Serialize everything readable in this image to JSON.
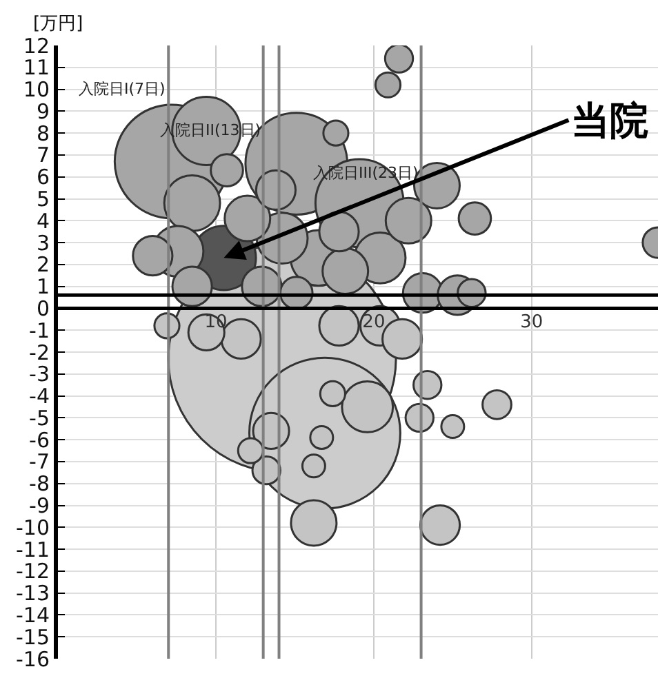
{
  "chart_data": {
    "type": "bubble",
    "ylabel": "[万円]",
    "x": [
      14.2,
      16.9,
      7.2,
      9.4,
      15.1,
      19.1,
      22.2,
      24.0,
      26.4,
      21.6,
      20.9,
      17.6,
      38.0,
      8.5,
      7.6,
      6.0,
      10.5,
      12.0,
      14.2,
      16.5,
      18.2,
      20.4,
      23.1,
      25.3,
      26.2,
      8.5,
      12.9,
      15.1,
      9.4,
      11.6,
      17.8,
      20.4,
      21.8,
      6.9,
      27.8,
      25.0,
      24.2,
      22.9,
      23.4,
      16.2,
      13.2,
      13.5,
      12.2,
      16.2,
      16.7,
      17.4,
      19.6,
      13.8,
      10.7,
      17.8
    ],
    "series": [
      {
        "values": [
          -2.3,
          -5.7,
          6.7,
          8.1,
          6.6,
          4.8,
          4.0,
          5.6,
          4.1,
          11.4,
          10.2,
          8.0,
          3.0,
          4.8,
          2.6,
          2.4,
          2.3,
          4.1,
          3.2,
          2.3,
          1.7,
          2.3,
          0.7,
          0.6,
          0.7,
          1.0,
          1.0,
          0.7,
          -1.1,
          -1.4,
          -0.8,
          -0.8,
          -1.4,
          -0.8,
          -4.4,
          -5.4,
          -9.9,
          -5.0,
          -3.5,
          -9.8,
          -7.4,
          -5.6,
          -6.5,
          -7.2,
          -5.9,
          -3.9,
          -4.5,
          5.4,
          6.3,
          3.5
        ],
        "sizes": [
          1,
          0.44,
          0.25,
          0.09,
          0.2,
          0.15,
          0.04,
          0.04,
          0.02,
          0.015,
          0.012,
          0.012,
          0.018,
          0.06,
          0.05,
          0.03,
          0.08,
          0.04,
          0.05,
          0.06,
          0.04,
          0.05,
          0.03,
          0.03,
          0.015,
          0.03,
          0.03,
          0.02,
          0.025,
          0.03,
          0.03,
          0.03,
          0.03,
          0.012,
          0.016,
          0.01,
          0.03,
          0.015,
          0.015,
          0.04,
          0.015,
          0.025,
          0.012,
          0.01,
          0.01,
          0.012,
          0.05,
          0.03,
          0.02,
          0.03
        ],
        "colors": [
          "#cccccc",
          "#cccccc",
          "#a6a6a6",
          "#a6a6a6",
          "#a6a6a6",
          "#a6a6a6",
          "#a6a6a6",
          "#a6a6a6",
          "#a6a6a6",
          "#a6a6a6",
          "#a6a6a6",
          "#a6a6a6",
          "#a6a6a6",
          "#a6a6a6",
          "#a6a6a6",
          "#a6a6a6",
          "#555555",
          "#a6a6a6",
          "#a6a6a6",
          "#a6a6a6",
          "#a6a6a6",
          "#a6a6a6",
          "#a6a6a6",
          "#a6a6a6",
          "#a6a6a6",
          "#a6a6a6",
          "#a6a6a6",
          "#a6a6a6",
          "#c4c4c4",
          "#c4c4c4",
          "#c4c4c4",
          "#c4c4c4",
          "#c4c4c4",
          "#c4c4c4",
          "#c4c4c4",
          "#c4c4c4",
          "#c4c4c4",
          "#c4c4c4",
          "#c4c4c4",
          "#c4c4c4",
          "#c4c4c4",
          "#c4c4c4",
          "#c4c4c4",
          "#c4c4c4",
          "#c4c4c4",
          "#c4c4c4",
          "#c4c4c4",
          "#a6a6a6",
          "#a6a6a6",
          "#a6a6a6"
        ]
      }
    ],
    "xlim": [
      0,
      38
    ],
    "ylim": [
      -16,
      12
    ],
    "xticks": [
      10,
      20,
      30
    ],
    "yticks": [
      -16,
      -15,
      -14,
      -13,
      -12,
      -11,
      -10,
      -9,
      -8,
      -7,
      -6,
      -5,
      -4,
      -3,
      -2,
      -1,
      0,
      1,
      2,
      3,
      4,
      5,
      6,
      7,
      8,
      9,
      10,
      11,
      12
    ],
    "grid": true,
    "ref_lines": [
      {
        "axis": "x",
        "value": 7,
        "label": "入院日I(7日)",
        "color": "#808080"
      },
      {
        "axis": "x",
        "value": 13,
        "label": "入院日II(13日)",
        "color": "#808080"
      },
      {
        "axis": "x",
        "value": 14,
        "color": "#808080"
      },
      {
        "axis": "x",
        "value": 23,
        "label": "入院日III(23日)",
        "color": "#808080"
      },
      {
        "axis": "y",
        "value": 0,
        "color": "#000000"
      },
      {
        "axis": "y",
        "value": 0.6,
        "color": "#000000"
      }
    ],
    "annotations": [
      {
        "text": "当院",
        "x": 10.5,
        "y": 2.3
      }
    ]
  }
}
